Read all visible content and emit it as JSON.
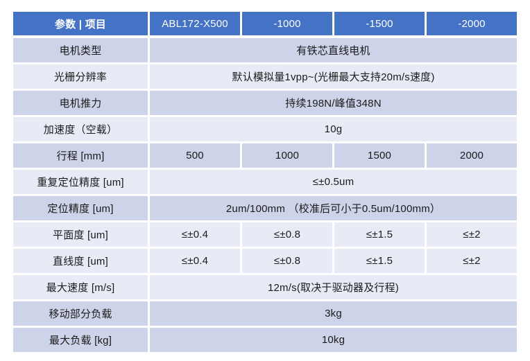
{
  "table": {
    "header": {
      "col0": "参数 | 项目",
      "models": [
        "ABL172-X500",
        "-1000",
        "-1500",
        "-2000"
      ]
    },
    "rows": [
      {
        "label": "电机类型",
        "merged": "有铁芯直线电机",
        "band": "dark"
      },
      {
        "label": "光栅分辨率",
        "merged": "默认模拟量1vpp~(光栅最大支持20m/s速度)",
        "band": "light"
      },
      {
        "label": "电机推力",
        "merged": "持续198N/峰值348N",
        "band": "dark"
      },
      {
        "label": "加速度（空载）",
        "merged": "10g",
        "band": "light"
      },
      {
        "label": "行程 [mm]",
        "cells": [
          "500",
          "1000",
          "1500",
          "2000"
        ],
        "band": "dark"
      },
      {
        "label": "重复定位精度 [um]",
        "merged": "≤±0.5um",
        "band": "light"
      },
      {
        "label": "定位精度 [um]",
        "merged": "2um/100mm （校准后可小于0.5um/100mm）",
        "band": "dark"
      },
      {
        "label": "平面度 [um]",
        "cells": [
          "≤±0.4",
          "≤±0.8",
          "≤±1.5",
          "≤±2"
        ],
        "band": "light"
      },
      {
        "label": "直线度 [um]",
        "cells": [
          "≤±0.4",
          "≤±0.8",
          "≤±1.5",
          "≤±2"
        ],
        "band": "light"
      },
      {
        "label": "最大速度 [m/s]",
        "merged": "12m/s(取决于驱动器及行程)",
        "band": "light"
      },
      {
        "label": "移动部分负载",
        "merged": "3kg",
        "band": "dark"
      },
      {
        "label": "最大负载 [kg]",
        "merged": "10kg",
        "band": "dark"
      }
    ],
    "colors": {
      "header_bg": "#4472C4",
      "header_text": "#FFFFFF",
      "band_dark": "#CDD3E8",
      "band_light": "#E8EBF6",
      "body_text": "#1A1A1A"
    }
  }
}
